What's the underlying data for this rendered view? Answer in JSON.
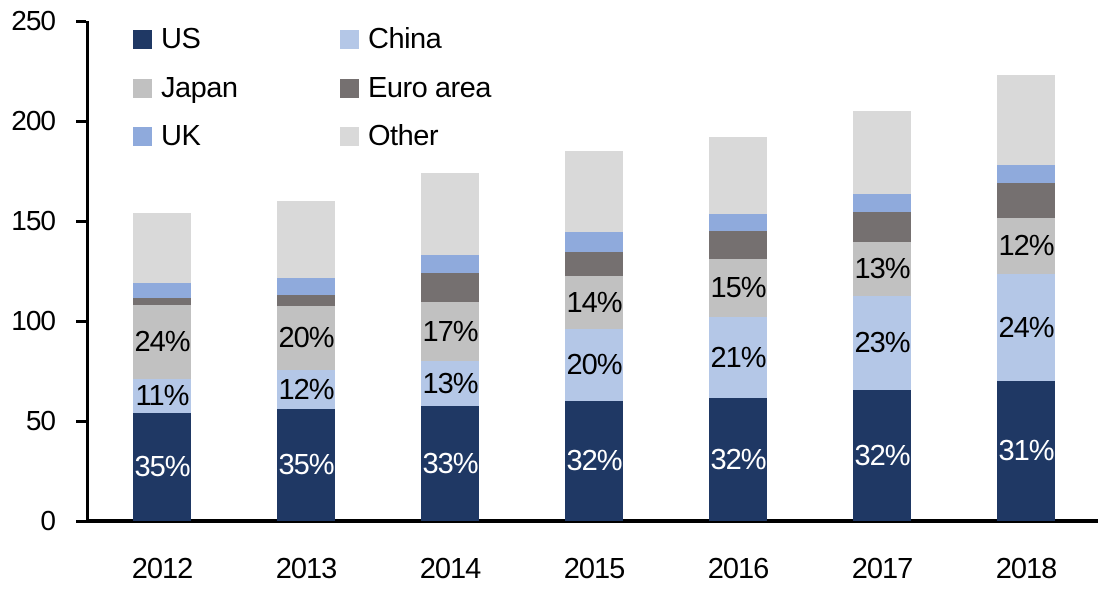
{
  "chart_data": {
    "type": "bar",
    "stacked": true,
    "title": "",
    "xlabel": "",
    "ylabel": "",
    "categories": [
      "2012",
      "2013",
      "2014",
      "2015",
      "2016",
      "2017",
      "2018"
    ],
    "series": [
      {
        "name": "US",
        "color": "#1F3864",
        "values": [
          54,
          56,
          57.5,
          60,
          61.5,
          65.5,
          70
        ],
        "labels": [
          "35%",
          "35%",
          "33%",
          "32%",
          "32%",
          "32%",
          "31%"
        ],
        "label_color": "#FFFFFF"
      },
      {
        "name": "China",
        "color": "#B4C7E7",
        "values": [
          17,
          19.5,
          22.5,
          36,
          40.5,
          47,
          53.5
        ],
        "labels": [
          "11%",
          "12%",
          "13%",
          "20%",
          "21%",
          "23%",
          "24%"
        ],
        "label_color": "#000000"
      },
      {
        "name": "Japan",
        "color": "#C1C1C1",
        "values": [
          37,
          32,
          29.5,
          26.5,
          29,
          27,
          28
        ],
        "labels": [
          "24%",
          "20%",
          "17%",
          "14%",
          "15%",
          "13%",
          "12%"
        ],
        "label_color": "#000000"
      },
      {
        "name": "Euro area",
        "color": "#757070",
        "values": [
          3.5,
          5.5,
          14.5,
          12,
          14,
          15,
          17.5
        ],
        "labels": null,
        "label_color": null
      },
      {
        "name": "UK",
        "color": "#8FAADC",
        "values": [
          7.5,
          8.5,
          9,
          10,
          8.5,
          9,
          9
        ],
        "labels": null,
        "label_color": null
      },
      {
        "name": "Other",
        "color": "#D9D9D9",
        "values": [
          35,
          38.5,
          41,
          40.5,
          38.5,
          41.5,
          45
        ],
        "labels": null,
        "label_color": null
      }
    ],
    "totals": [
      154,
      160,
      174,
      185,
      192,
      205,
      223
    ],
    "ylim": [
      0,
      250
    ],
    "ytick_step": 50,
    "yticks": [
      "0",
      "50",
      "100",
      "150",
      "200",
      "250"
    ],
    "grid": false,
    "legend_position": "top-left",
    "legend": {
      "columns": 2,
      "items": [
        {
          "label": "US",
          "color": "#1F3864"
        },
        {
          "label": "China",
          "color": "#B4C7E7"
        },
        {
          "label": "Japan",
          "color": "#C1C1C1"
        },
        {
          "label": "Euro area",
          "color": "#757070"
        },
        {
          "label": "UK",
          "color": "#8FAADC"
        },
        {
          "label": "Other",
          "color": "#D9D9D9"
        }
      ]
    }
  }
}
